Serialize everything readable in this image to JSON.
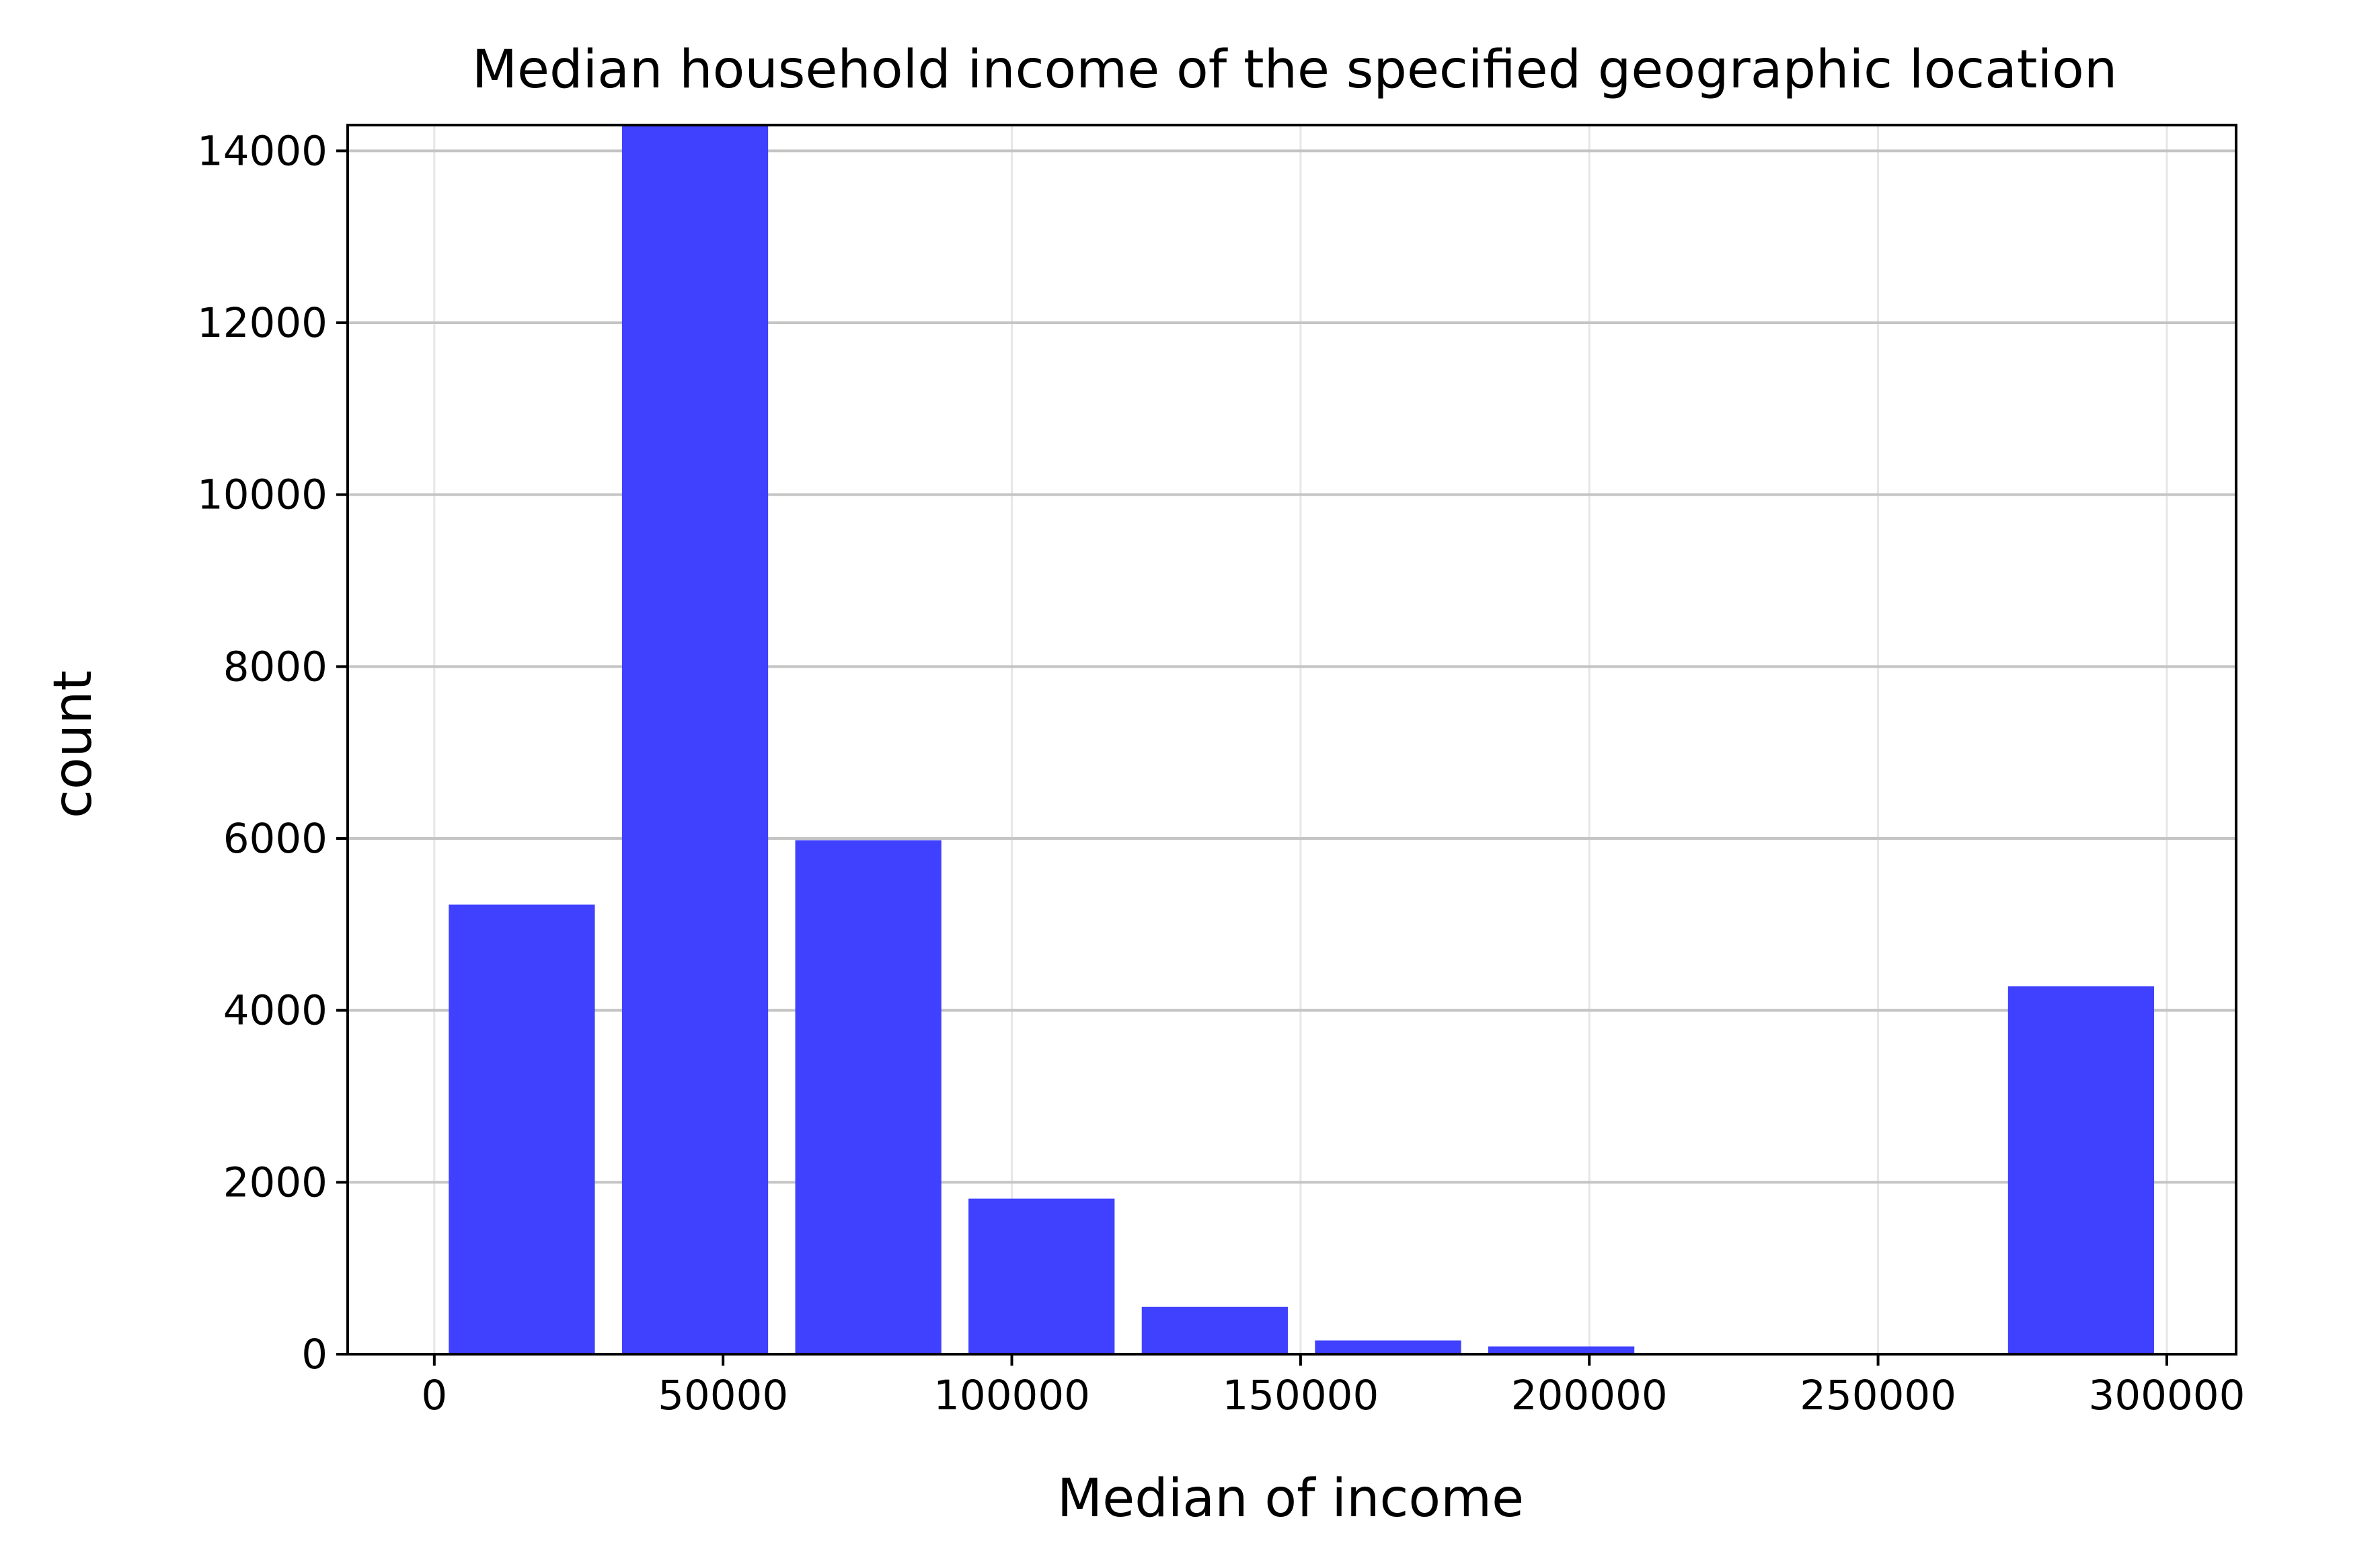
{
  "chart_data": {
    "type": "bar",
    "title": "Median household income of the specified geographic location",
    "xlabel": "Median of income",
    "ylabel": "count",
    "xlim": [
      -15000,
      312000
    ],
    "ylim": [
      0,
      14300
    ],
    "bar_color": "#4040ff",
    "grid": true,
    "x_ticks": [
      {
        "value": 0,
        "label": "0"
      },
      {
        "value": 50000,
        "label": "50000"
      },
      {
        "value": 100000,
        "label": "100000"
      },
      {
        "value": 150000,
        "label": "150000"
      },
      {
        "value": 200000,
        "label": "200000"
      },
      {
        "value": 250000,
        "label": "250000"
      },
      {
        "value": 300000,
        "label": "300000"
      }
    ],
    "y_ticks": [
      {
        "value": 0,
        "label": "0"
      },
      {
        "value": 2000,
        "label": "2000"
      },
      {
        "value": 4000,
        "label": "4000"
      },
      {
        "value": 6000,
        "label": "6000"
      },
      {
        "value": 8000,
        "label": "8000"
      },
      {
        "value": 10000,
        "label": "10000"
      },
      {
        "value": 12000,
        "label": "12000"
      },
      {
        "value": 14000,
        "label": "14000"
      }
    ],
    "bars": [
      {
        "x_start": 2500,
        "x_end": 27800,
        "value": 5230
      },
      {
        "x_start": 32500,
        "x_end": 57800,
        "value": 14300
      },
      {
        "x_start": 62500,
        "x_end": 87800,
        "value": 5980
      },
      {
        "x_start": 92500,
        "x_end": 117800,
        "value": 1810
      },
      {
        "x_start": 122500,
        "x_end": 147800,
        "value": 550
      },
      {
        "x_start": 152500,
        "x_end": 177800,
        "value": 160
      },
      {
        "x_start": 182500,
        "x_end": 207800,
        "value": 90
      },
      {
        "x_start": 212500,
        "x_end": 237800,
        "value": 0
      },
      {
        "x_start": 242500,
        "x_end": 267800,
        "value": 0
      },
      {
        "x_start": 272500,
        "x_end": 297800,
        "value": 4280
      }
    ]
  }
}
